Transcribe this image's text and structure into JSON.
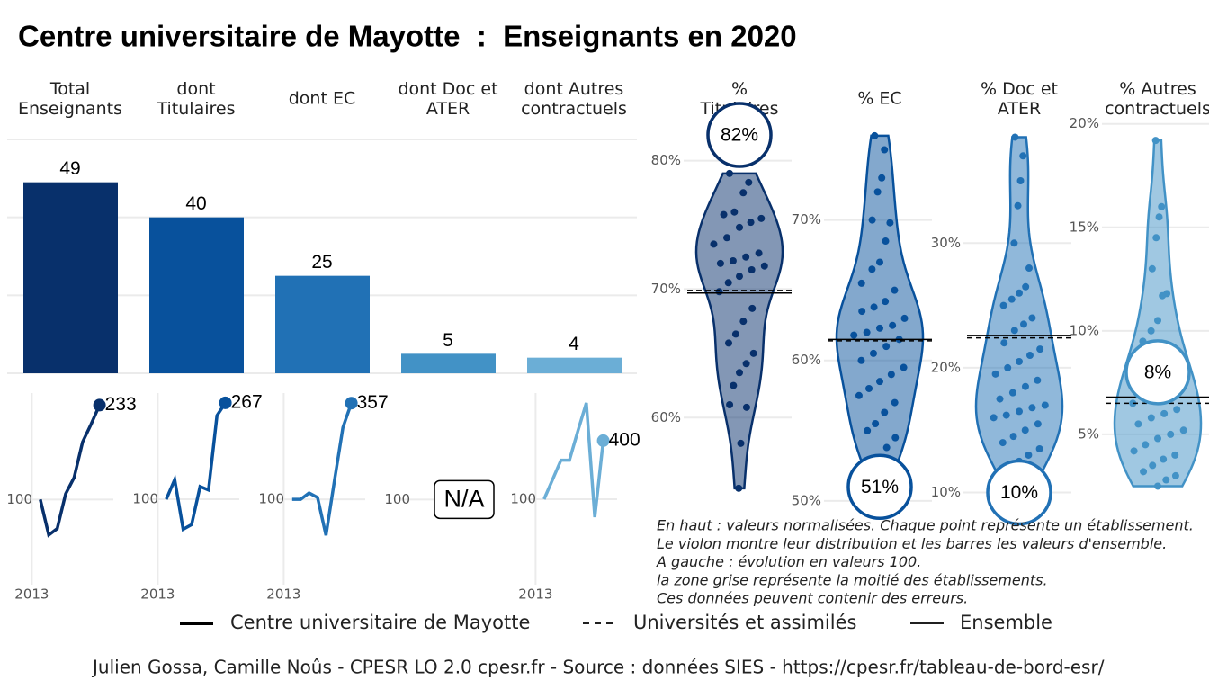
{
  "title": "Centre universitaire de Mayotte  :  Enseignants en 2020",
  "chart_data": [
    {
      "type": "bar",
      "categories": [
        "Total\nEnseignants",
        "dont\nTitulaires",
        "dont EC",
        "dont Doc et\nATER",
        "dont Autres\ncontractuels"
      ],
      "values": [
        49,
        40,
        25,
        5,
        4
      ],
      "colors": [
        "#08306b",
        "#08519c",
        "#2171b5",
        "#4292c6",
        "#6baed6"
      ],
      "ylim": [
        0,
        60
      ],
      "yticks": [
        0,
        20,
        40,
        60
      ],
      "grid": true
    },
    {
      "type": "line",
      "panels": [
        {
          "x": [
            2014,
            2015,
            2016,
            2017,
            2018,
            2019,
            2020,
            2021
          ],
          "values": [
            100,
            50,
            59,
            108,
            131,
            181,
            206,
            233
          ],
          "color": "#08306b",
          "xlim": [
            2012,
            2022
          ],
          "ylim": [
            -20,
            250
          ],
          "yticks": [
            100
          ],
          "xticks": [
            2013
          ]
        },
        {
          "x": [
            2014,
            2015,
            2016,
            2017,
            2018,
            2019,
            2020,
            2021
          ],
          "values": [
            100,
            134,
            48,
            56,
            122,
            116,
            245,
            267
          ],
          "color": "#08519c",
          "xlim": [
            2012,
            2022
          ],
          "ylim": [
            -48,
            284
          ],
          "yticks": [
            100
          ],
          "xticks": [
            2013
          ]
        },
        {
          "x": [
            2014,
            2015,
            2016,
            2017,
            2018,
            2019,
            2020,
            2021
          ],
          "values": [
            100,
            100,
            117,
            105,
            4,
            150,
            292,
            357
          ],
          "color": "#2171b5",
          "xlim": [
            2012,
            2022
          ],
          "ylim": [
            -128,
            384
          ],
          "yticks": [
            100
          ],
          "xticks": [
            2013
          ]
        },
        {
          "label": "N/A",
          "color": "#4292c6",
          "xlim": [
            2012,
            2022
          ],
          "ylim": [
            -20,
            250
          ],
          "yticks": [
            100
          ]
        },
        {
          "x": [
            2014,
            2015,
            2016,
            2017,
            2018,
            2019,
            2020,
            2021
          ],
          "values": [
            100,
            200,
            300,
            300,
            450,
            593,
            8,
            400
          ],
          "color": "#6baed6",
          "xlim": [
            2012,
            2022
          ],
          "ylim": [
            -338,
            644
          ],
          "yticks": [
            100
          ],
          "xticks": [
            2013
          ]
        }
      ]
    },
    {
      "type": "violin",
      "panels": [
        {
          "title": "%\nTitulaires",
          "color": "#08306b",
          "ylim": [
            53.3,
            82.7
          ],
          "yticks": [
            {
              "value": 60,
              "label": "60%"
            },
            {
              "value": 70,
              "label": "70%"
            },
            {
              "value": 80,
              "label": "80%"
            }
          ],
          "values": [
            79,
            78.3,
            77.5,
            76,
            75.8,
            75.5,
            75.2,
            74.8,
            74,
            73.5,
            72.8,
            72.5,
            72.2,
            72,
            71.8,
            71.5,
            71,
            70.5,
            69.8,
            68.5,
            67.5,
            66.5,
            65.8,
            65,
            64.2,
            63.5,
            62.5,
            61,
            60.8,
            58,
            54.5
          ],
          "highlight": 82,
          "highlight_label": "82%",
          "ensemble": 69.7,
          "universites": 69.9
        },
        {
          "title": "% EC",
          "color": "#08519c",
          "ylim": [
            49.8,
            76.7
          ],
          "yticks": [
            {
              "value": 50,
              "label": "50%"
            },
            {
              "value": 60,
              "label": "60%"
            },
            {
              "value": 70,
              "label": "70%"
            }
          ],
          "values": [
            76,
            75,
            73,
            72,
            70,
            69.8,
            68.5,
            67,
            66.5,
            65.5,
            65,
            64.2,
            63.8,
            63.5,
            63,
            62.5,
            62.3,
            62,
            61.8,
            61.5,
            61,
            60.5,
            60,
            59.5,
            59,
            58.5,
            58,
            57.5,
            57,
            56.3,
            55.5,
            55,
            54.5,
            53.8,
            53,
            52.5
          ],
          "highlight": 51,
          "highlight_label": "51%",
          "ensemble": 61.5,
          "universites": 61.4
        },
        {
          "title": "% Doc et\nATER",
          "color": "#2171b5",
          "ylim": [
            9.1,
            39.4
          ],
          "yticks": [
            {
              "value": 10,
              "label": "10%"
            },
            {
              "value": 20,
              "label": "20%"
            },
            {
              "value": 30,
              "label": "30%"
            }
          ],
          "values": [
            38.5,
            37,
            35,
            33,
            30,
            28,
            26.5,
            26,
            25.5,
            25,
            24,
            23.5,
            23,
            22,
            21.5,
            21,
            20.5,
            20,
            19.5,
            19,
            18.5,
            18,
            17.5,
            17,
            16.8,
            16.5,
            16.2,
            16,
            15.5,
            15,
            14.5,
            14,
            13.5,
            13,
            12.5,
            12,
            11.5
          ],
          "highlight": 10,
          "highlight_label": "10%",
          "ensemble": 22.6,
          "universites": 22.4
        },
        {
          "title": "% Autres\ncontractuels",
          "color": "#4292c6",
          "ylim": [
            1.65,
            19.9
          ],
          "yticks": [
            {
              "value": 5,
              "label": "5%"
            },
            {
              "value": 10,
              "label": "10%"
            },
            {
              "value": 15,
              "label": "15%"
            },
            {
              "value": 20,
              "label": "20%"
            }
          ],
          "values": [
            19.2,
            16,
            15.5,
            14.5,
            13,
            11.8,
            11.7,
            10.5,
            10,
            9.5,
            9,
            8.5,
            8,
            7.8,
            7.5,
            7.3,
            7,
            6.8,
            6.5,
            6.2,
            6,
            5.8,
            5.5,
            5.2,
            5,
            4.8,
            4.5,
            4.2,
            4,
            3.8,
            3.5,
            3.2,
            3,
            2.8,
            2.5
          ],
          "highlight": 8,
          "highlight_label": "8%",
          "ensemble": 6.8,
          "universites": 6.5
        }
      ]
    }
  ],
  "notes": [
    "En haut : valeurs normalisées. Chaque point représente un établissement.",
    "Le violon montre leur distribution et les barres les valeurs d'ensemble.",
    "A gauche : évolution en valeurs 100.",
    "la zone grise représente la moitié des établissements.",
    "Ces données peuvent contenir des erreurs."
  ],
  "legend": [
    {
      "name": "Centre universitaire de Mayotte",
      "style": "solid-thick"
    },
    {
      "name": "Universités et assimilés",
      "style": "dashed"
    },
    {
      "name": "Ensemble",
      "style": "solid"
    }
  ],
  "footer": "Julien Gossa, Camille Noûs - CPESR LO 2.0 cpesr.fr - Source : données SIES - https://cpesr.fr/tableau-de-bord-esr/"
}
